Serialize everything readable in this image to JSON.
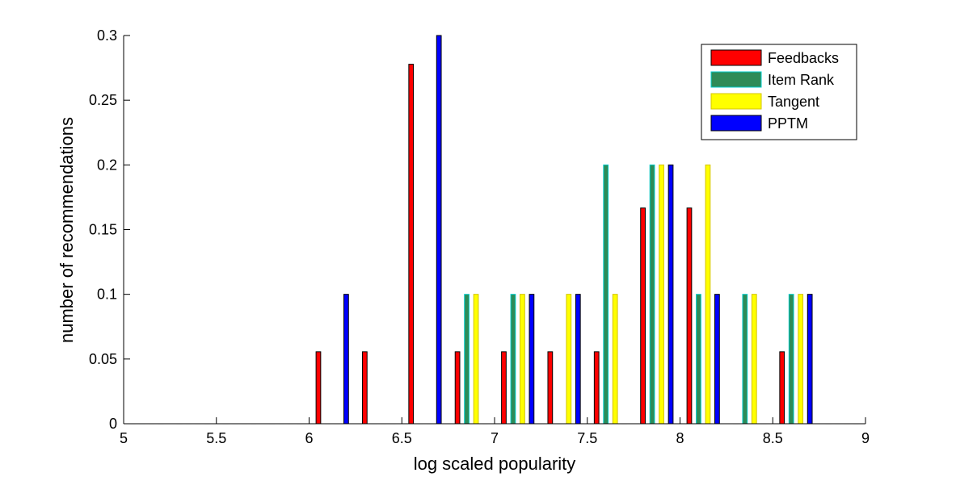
{
  "chart_data": {
    "type": "bar",
    "xlabel": "log scaled popularity",
    "ylabel": "number of recommendations",
    "xlim": [
      5,
      9
    ],
    "ylim": [
      0,
      0.3
    ],
    "xticks": [
      "5",
      "5.5",
      "6",
      "6.5",
      "7",
      "7.5",
      "8",
      "8.5",
      "9"
    ],
    "yticks": [
      "0",
      "0.05",
      "0.1",
      "0.15",
      "0.2",
      "0.25",
      "0.3"
    ],
    "legend_position": "top-right",
    "bin_centers": [
      5.125,
      5.375,
      5.625,
      5.875,
      6.125,
      6.375,
      6.625,
      6.875,
      7.125,
      7.375,
      7.625,
      7.875,
      8.125,
      8.375,
      8.625,
      8.875
    ],
    "series": [
      {
        "name": "Feedbacks",
        "color": "#ff0000",
        "edge": "#000000",
        "values": [
          0,
          0,
          0,
          0,
          0.0556,
          0.0556,
          0.2778,
          0.0556,
          0.0556,
          0.0556,
          0.0556,
          0.1667,
          0.1667,
          0,
          0.0556,
          0
        ]
      },
      {
        "name": "Item Rank",
        "color": "#2e8b57",
        "edge": "#00cccc",
        "values": [
          0,
          0,
          0,
          0,
          0,
          0,
          0,
          0.1,
          0.1,
          0,
          0.2,
          0.2,
          0.1,
          0.1,
          0.1,
          0
        ]
      },
      {
        "name": "Tangent",
        "color": "#ffff00",
        "edge": "#d4c400",
        "values": [
          0,
          0,
          0,
          0,
          0,
          0,
          0,
          0.1,
          0.1,
          0.1,
          0.1,
          0.2,
          0.2,
          0.1,
          0.1,
          0
        ]
      },
      {
        "name": "PPTM",
        "color": "#0000ff",
        "edge": "#000000",
        "values": [
          0,
          0,
          0,
          0,
          0.1,
          0,
          0.3,
          0,
          0.1,
          0.1,
          0,
          0.2,
          0.1,
          0,
          0.1,
          0
        ]
      }
    ]
  }
}
